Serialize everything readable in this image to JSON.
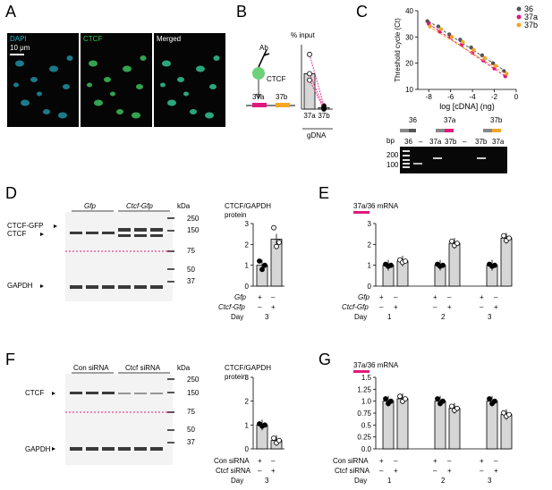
{
  "panel_letters": [
    "A",
    "B",
    "C",
    "D",
    "E",
    "F",
    "G"
  ],
  "panelA": {
    "labels": [
      "DAPI",
      "CTCF",
      "Merged"
    ],
    "scale_bar": "10 μm",
    "label_colors": [
      "#25b3c8",
      "#39c45a",
      "#ffffff"
    ]
  },
  "panelB": {
    "ab_label": "Ab",
    "ctcf_label": "CTCF",
    "site_labels": [
      "37a",
      "37b"
    ],
    "y_label": "% input",
    "x_labels": [
      "37a",
      "37b"
    ],
    "gdna_label": "gDNA",
    "colors": {
      "s37a": "#e0197c",
      "s37b": "#f5a623",
      "bead": "#6dd07a"
    }
  },
  "panelC": {
    "legend": [
      "36",
      "37a",
      "37b"
    ],
    "legend_colors": [
      "#555555",
      "#e0197c",
      "#f5a623"
    ],
    "gel_bp_label": "bp",
    "gel_marks": [
      "200",
      "100"
    ],
    "gel_lanes": [
      "36",
      "–",
      "37a",
      "37b",
      "–",
      "37b",
      "37a"
    ],
    "gel_headers": [
      "36",
      "37a",
      "37b"
    ]
  },
  "panelD": {
    "lanes": [
      "Gfp",
      "Ctcf-Gfp"
    ],
    "kda_label": "kDa",
    "mw": [
      "250",
      "150",
      "75",
      "50",
      "37"
    ],
    "bands": [
      "CTCF-GFP",
      "CTCF",
      "GAPDH"
    ],
    "chart_title": [
      "CTCF/GAPDH",
      "protein"
    ],
    "row_labels": [
      "Gfp",
      "Ctcf-Gfp",
      "Day"
    ],
    "signs_gfp": [
      "+",
      "–"
    ],
    "signs_ctcf": [
      "–",
      "+"
    ],
    "day": "3"
  },
  "panelE": {
    "title": "37a/36 mRNA",
    "row_labels": [
      "Gfp",
      "Ctcf-Gfp",
      "Day"
    ],
    "signs_gfp": [
      "+",
      "–",
      "+",
      "–",
      "+",
      "–"
    ],
    "signs_ctcf": [
      "–",
      "+",
      "–",
      "+",
      "–",
      "+"
    ],
    "days": [
      "1",
      "2",
      "3"
    ]
  },
  "panelF": {
    "lanes": [
      "Con siRNA",
      "Ctcf siRNA"
    ],
    "kda_label": "kDa",
    "mw": [
      "250",
      "150",
      "75",
      "50",
      "37"
    ],
    "bands": [
      "CTCF",
      "GAPDH"
    ],
    "chart_title": [
      "CTCF/GAPDH",
      "protein"
    ],
    "row_labels": [
      "Con siRNA",
      "Ctcf siRNA",
      "Day"
    ],
    "signs_con": [
      "+",
      "–"
    ],
    "signs_ctcf": [
      "–",
      "+"
    ],
    "day": "3"
  },
  "panelG": {
    "title": "37a/36 mRNA",
    "row_labels": [
      "Con siRNA",
      "Ctcf siRNA",
      "Day"
    ],
    "signs_con": [
      "+",
      "–",
      "+",
      "–",
      "+",
      "–"
    ],
    "signs_ctcf": [
      "–",
      "+",
      "–",
      "+",
      "–",
      "+"
    ],
    "days": [
      "1",
      "2",
      "3"
    ]
  },
  "chart_data": [
    {
      "type": "bar",
      "id": "B",
      "categories": [
        "37a",
        "37b"
      ],
      "values": [
        0.55,
        0.02
      ],
      "points": [
        [
          0.85,
          0.45,
          0.55
        ],
        [
          0.05,
          0.0,
          0.02
        ]
      ],
      "ylim": [
        0,
        1
      ],
      "ylabel": "% input"
    },
    {
      "type": "scatter",
      "id": "C",
      "xlabel": "log [cDNA] (ng)",
      "ylabel": "Threshold cycle (Ct)",
      "xlim": [
        -9,
        0
      ],
      "ylim": [
        10,
        40
      ],
      "xticks": [
        -8,
        -6,
        -4,
        -2,
        0
      ],
      "yticks": [
        10,
        20,
        30,
        40
      ],
      "series": [
        {
          "name": "36",
          "x": [
            -8,
            -7,
            -6,
            -5,
            -4,
            -3,
            -2,
            -1
          ],
          "y": [
            36,
            34,
            31,
            29,
            26,
            23,
            20,
            17
          ]
        },
        {
          "name": "37a",
          "x": [
            -8,
            -7,
            -6,
            -5,
            -4,
            -3,
            -2,
            -1
          ],
          "y": [
            35,
            32,
            30,
            27,
            24,
            21,
            18,
            15
          ]
        },
        {
          "name": "37b",
          "x": [
            -8,
            -7,
            -6,
            -5,
            -4,
            -3,
            -2,
            -1
          ],
          "y": [
            34,
            33,
            30,
            28,
            25,
            22,
            19,
            16
          ]
        }
      ]
    },
    {
      "type": "bar",
      "id": "D",
      "categories": [
        "Gfp",
        "Ctcf-Gfp"
      ],
      "values": [
        1.0,
        2.25
      ],
      "points": [
        [
          1.2,
          0.8,
          1.0
        ],
        [
          2.8,
          1.9,
          2.1
        ]
      ],
      "ylim": [
        0,
        3
      ],
      "yticks": [
        0,
        1,
        2,
        3
      ]
    },
    {
      "type": "bar",
      "id": "E",
      "categories": [
        "D1 Gfp",
        "D1 Ctcf-Gfp",
        "D2 Gfp",
        "D2 Ctcf-Gfp",
        "D3 Gfp",
        "D3 Ctcf-Gfp"
      ],
      "values": [
        1.0,
        1.2,
        1.0,
        2.05,
        1.0,
        2.3
      ],
      "ylim": [
        0,
        3
      ],
      "yticks": [
        0,
        1,
        2,
        3
      ]
    },
    {
      "type": "bar",
      "id": "F",
      "categories": [
        "Con siRNA",
        "Ctcf siRNA"
      ],
      "values": [
        1.0,
        0.35
      ],
      "points": [
        [
          1.05,
          0.95,
          1.0
        ],
        [
          0.45,
          0.25,
          0.35
        ]
      ],
      "ylim": [
        0,
        3
      ],
      "yticks": [
        0,
        1,
        2,
        3
      ]
    },
    {
      "type": "bar",
      "id": "G",
      "categories": [
        "D1 Con",
        "D1 Ctcf",
        "D2 Con",
        "D2 Ctcf",
        "D3 Con",
        "D3 Ctcf"
      ],
      "values": [
        1.0,
        1.05,
        1.0,
        0.85,
        1.0,
        0.72
      ],
      "ylim": [
        0,
        1.5
      ],
      "yticks": [
        0,
        0.25,
        0.5,
        0.75,
        1.0,
        1.25,
        1.5
      ]
    }
  ]
}
